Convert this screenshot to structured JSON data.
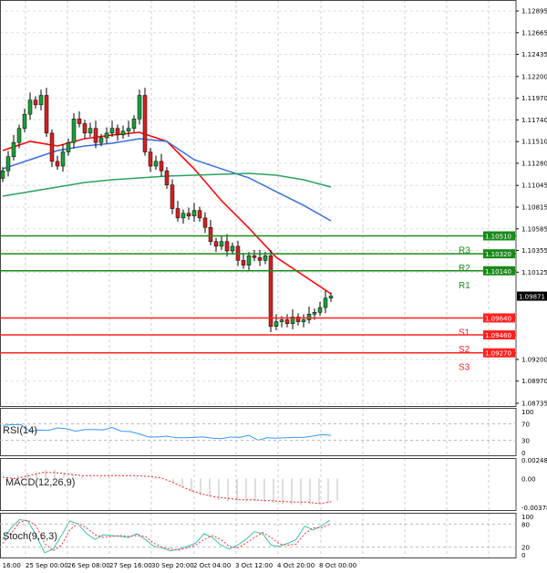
{
  "chart_data": {
    "type": "candlestick",
    "instrument_panel": "main",
    "price_axis": {
      "min": 1.08735,
      "max": 1.12895,
      "ticks": [
        "1.12895",
        "1.12665",
        "1.12435",
        "1.12200",
        "1.11970",
        "1.11740",
        "1.11510",
        "1.11280",
        "1.11045",
        "1.10815",
        "1.10585",
        "1.10355",
        "1.10125",
        "1.09200",
        "1.08970",
        "1.08735"
      ]
    },
    "closes": [
      1.112,
      1.1135,
      1.115,
      1.1165,
      1.118,
      1.1195,
      1.119,
      1.12,
      1.116,
      1.113,
      1.1125,
      1.114,
      1.115,
      1.1175,
      1.117,
      1.116,
      1.1165,
      1.115,
      1.1155,
      1.116,
      1.1165,
      1.1158,
      1.1162,
      1.1165,
      1.1175,
      1.12,
      1.114,
      1.1125,
      1.113,
      1.112,
      1.1105,
      1.108,
      1.107,
      1.1075,
      1.1072,
      1.1078,
      1.107,
      1.106,
      1.1045,
      1.104,
      1.1045,
      1.1035,
      1.104,
      1.1025,
      1.102,
      1.103,
      1.1028,
      1.1025,
      1.103,
      1.0955,
      1.096,
      1.0962,
      1.0958,
      1.0965,
      1.096,
      1.0962,
      1.0968,
      1.097,
      1.0975,
      1.0985,
      1.09871
    ],
    "moving_averages": [
      {
        "name": "fast",
        "color": "#ff0000",
        "values": [
          1.11415,
          1.11512,
          1.11463,
          1.11541,
          1.11579,
          1.11608,
          1.11512,
          1.11221,
          1.10883,
          1.10593,
          1.10283,
          1.1009,
          1.09896
        ]
      },
      {
        "name": "medium",
        "color": "#3d6ee0",
        "values": [
          1.11221,
          1.11318,
          1.11415,
          1.11463,
          1.11492,
          1.11541,
          1.11512,
          1.11318,
          1.11221,
          1.11125,
          1.10979,
          1.10834,
          1.1067
        ]
      },
      {
        "name": "slow",
        "color": "#2ca25f",
        "values": [
          1.10931,
          1.10979,
          1.11028,
          1.11076,
          1.11105,
          1.11125,
          1.11144,
          1.11154,
          1.11163,
          1.11173,
          1.11154,
          1.11105,
          1.11028
        ]
      }
    ],
    "current_price": "1.09871",
    "levels": [
      {
        "name": "R3",
        "value": "1.10510",
        "color": "#1a8a1a"
      },
      {
        "name": "R2",
        "value": "1.10320",
        "color": "#1a8a1a"
      },
      {
        "name": "R1",
        "value": "1.10140",
        "color": "#1a8a1a"
      },
      {
        "name": "S1",
        "value": "1.09640",
        "color": "#ff2020"
      },
      {
        "name": "S2",
        "value": "1.09460",
        "color": "#ff2020"
      },
      {
        "name": "S3",
        "value": "1.09270",
        "color": "#ff2020"
      }
    ],
    "time_labels": [
      "p 16:00",
      "25 Sep 00:00",
      "26 Sep 08:00",
      "27 Sep 16:00",
      "30 Sep 20:00",
      "2 Oct 04:00",
      "3 Oct 12:00",
      "4 Oct 20:00",
      "8 Oct 00:00"
    ],
    "rsi": {
      "title": "RSI(14)",
      "ticks": [
        "100",
        "70",
        "30",
        "0"
      ],
      "values": [
        66,
        68,
        68,
        52,
        55,
        54,
        60,
        58,
        52,
        56,
        56,
        55,
        61,
        52,
        51,
        45,
        38,
        38,
        40,
        36,
        36,
        37,
        38,
        35,
        34,
        38,
        37,
        42,
        30,
        36,
        35,
        36,
        37,
        37,
        40,
        44,
        42
      ]
    },
    "macd": {
      "title": "MACD(12,26,9)",
      "ticks": [
        "0.00248",
        "0.00",
        "-0.003788"
      ],
      "histogram": [
        0.0005,
        0.0008,
        0.001,
        0.0012,
        0.0012,
        0.0008,
        0.0005,
        0.0003,
        0.0002,
        0.0002,
        0.0002,
        0.0001,
        0.0001,
        0.0002,
        0.0001,
        0.0001,
        0,
        -0.0006,
        -0.0012,
        -0.0018,
        -0.0022,
        -0.0024,
        -0.0028,
        -0.003,
        -0.003,
        -0.0031,
        -0.003,
        -0.0031,
        -0.0032,
        -0.0034,
        -0.0034,
        -0.0035,
        -0.0034,
        -0.0033,
        -0.0032,
        -0.0029
      ],
      "signal": [
        0.0002,
        0,
        0.0004,
        0.0008,
        0.0008,
        0.0006,
        0.0004,
        0.0004,
        0.0004,
        0.0004,
        0.0004,
        0.0003,
        0.0001,
        -0.0006,
        -0.0014,
        -0.002,
        -0.0024,
        -0.0026,
        -0.0028,
        -0.0028,
        -0.0029,
        -0.003,
        -0.0031,
        -0.0031,
        -0.0033,
        -0.003
      ]
    },
    "stoch": {
      "title": "Stoch(9,6,3)",
      "ticks": [
        "100",
        "80",
        "20",
        "0"
      ],
      "main": [
        40,
        70,
        92,
        88,
        50,
        5,
        15,
        50,
        88,
        80,
        55,
        40,
        52,
        50,
        48,
        45,
        55,
        40,
        22,
        18,
        10,
        15,
        22,
        30,
        55,
        45,
        25,
        15,
        25,
        40,
        60,
        55,
        25,
        22,
        30,
        40,
        75,
        65,
        75,
        90
      ],
      "signal": [
        30,
        55,
        85,
        90,
        75,
        30,
        10,
        25,
        65,
        82,
        70,
        52,
        45,
        48,
        50,
        48,
        50,
        48,
        30,
        20,
        15,
        12,
        18,
        25,
        40,
        50,
        40,
        22,
        18,
        30,
        45,
        58,
        45,
        28,
        25,
        28,
        55,
        70,
        70,
        80
      ]
    }
  }
}
